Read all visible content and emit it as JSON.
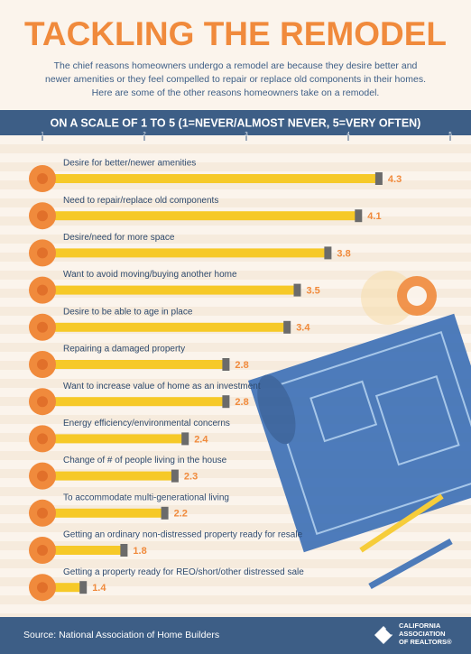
{
  "chart_data": {
    "type": "bar",
    "title": "TACKLING THE REMODEL",
    "subtitle": [
      "The chief reasons homeowners undergo a remodel are because they desire better and",
      "newer amenities or they feel compelled to repair or replace old components in their homes.",
      "Here are some of the other reasons homeowners take on a remodel."
    ],
    "axis_title": "ON A SCALE OF 1 TO 5 (1=NEVER/ALMOST NEVER, 5=VERY OFTEN)",
    "categories": [
      "Desire for better/newer amenities",
      "Need to repair/replace old components",
      "Desire/need for more space",
      "Want to avoid moving/buying another home",
      "Desire to be able to age in place",
      "Repairing a damaged property",
      "Want to increase value of home as an investment",
      "Energy efficiency/environmental concerns",
      "Change of # of people living in the house",
      "To accommodate multi-generational living",
      "Getting an ordinary non-distressed property ready for resale",
      "Getting a property ready for REO/short/other distressed sale"
    ],
    "values": [
      4.3,
      4.1,
      3.8,
      3.5,
      3.4,
      2.8,
      2.8,
      2.4,
      2.3,
      2.2,
      1.8,
      1.4
    ],
    "color": "#f6c928",
    "xlim": [
      1,
      5
    ],
    "xticks": [
      1,
      2,
      3,
      4,
      5
    ],
    "source": "Source: National Association of Home Builders",
    "logo": [
      "CALIFORNIA",
      "ASSOCIATION",
      "OF REALTORS®"
    ]
  }
}
